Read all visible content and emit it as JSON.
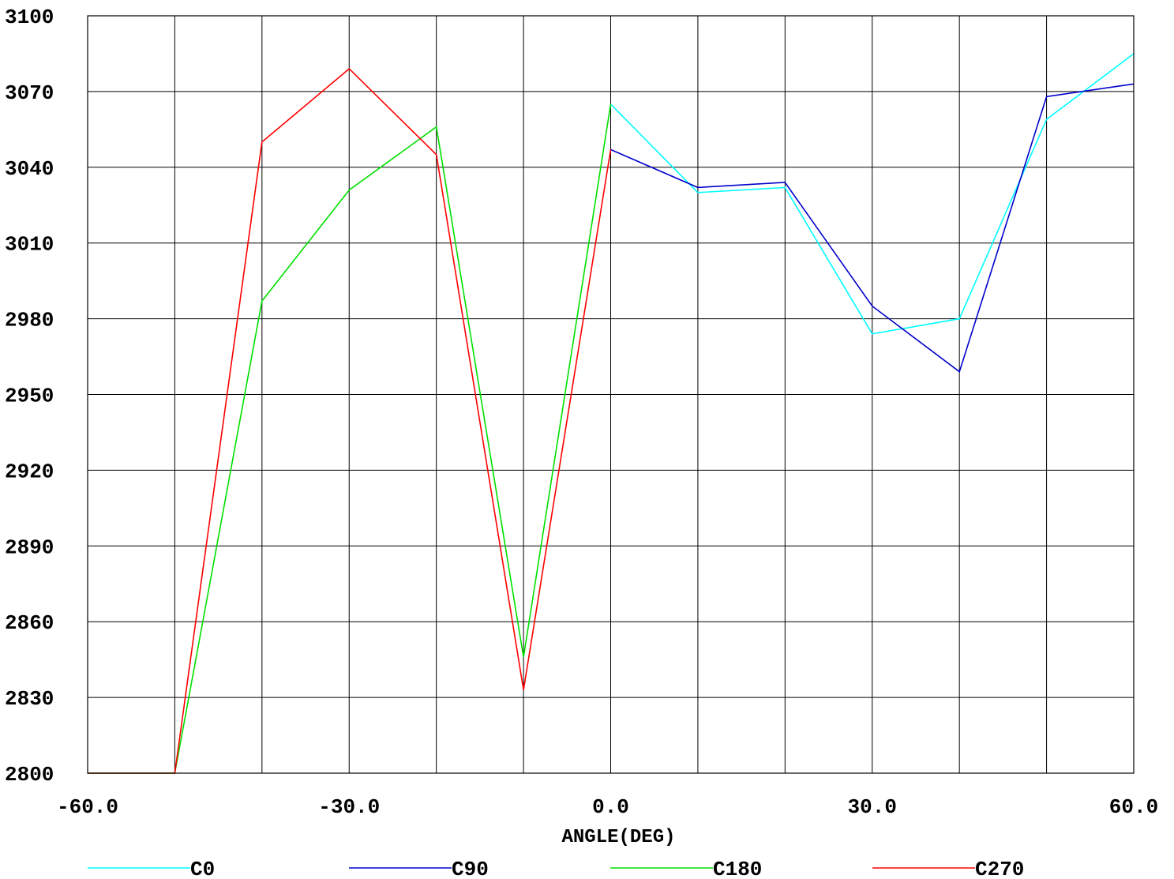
{
  "chart_data": {
    "type": "line",
    "xlabel": "ANGLE(DEG)",
    "ylabel": "",
    "xlim": [
      -60,
      60
    ],
    "ylim": [
      2800,
      3100
    ],
    "x_ticks": [
      -60,
      -30,
      0,
      30,
      60
    ],
    "x_tick_labels": [
      "-60.0",
      "-30.0",
      "0.0",
      "30.0",
      "60.0"
    ],
    "y_ticks": [
      2800,
      2830,
      2860,
      2890,
      2920,
      2950,
      2980,
      3010,
      3040,
      3070,
      3100
    ],
    "y_tick_labels": [
      "2800",
      "2830",
      "2860",
      "2890",
      "2920",
      "2950",
      "2980",
      "3010",
      "3040",
      "3070",
      "3100"
    ],
    "grid": true,
    "grid_x_step": 10,
    "legend_position": "bottom",
    "series": [
      {
        "name": "C0",
        "color": "#00ffff",
        "points": [
          [
            0,
            3065
          ],
          [
            10,
            3030
          ],
          [
            20,
            3032
          ],
          [
            30,
            2974
          ],
          [
            40,
            2980
          ],
          [
            50,
            3059
          ],
          [
            60,
            3085
          ]
        ]
      },
      {
        "name": "C90",
        "color": "#0000cc",
        "points": [
          [
            0,
            3047
          ],
          [
            10,
            3032
          ],
          [
            20,
            3034
          ],
          [
            30,
            2985
          ],
          [
            40,
            2959
          ],
          [
            50,
            3068
          ],
          [
            60,
            3073
          ]
        ]
      },
      {
        "name": "C180",
        "color": "#00e000",
        "points": [
          [
            -60,
            2800
          ],
          [
            -50,
            2800
          ],
          [
            -40,
            2987
          ],
          [
            -30,
            3031
          ],
          [
            -20,
            3056
          ],
          [
            -10,
            2846
          ],
          [
            0,
            3065
          ]
        ]
      },
      {
        "name": "C270",
        "color": "#ff0000",
        "points": [
          [
            -60,
            2800
          ],
          [
            -50,
            2800
          ],
          [
            -40,
            3050
          ],
          [
            -30,
            3079
          ],
          [
            -20,
            3045
          ],
          [
            -10,
            2833
          ],
          [
            0,
            3047
          ]
        ]
      }
    ]
  }
}
